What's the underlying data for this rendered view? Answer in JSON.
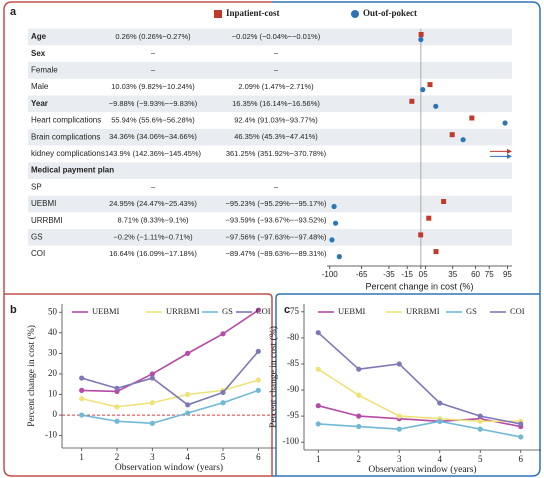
{
  "chart_data": [
    {
      "type": "forest",
      "panel_label": "a",
      "categories": [
        "Age",
        "Sex",
        "Female",
        "Male",
        "Year",
        "Heart complications",
        "Brain complications",
        "kidney complications",
        "Medical payment plan",
        "SP",
        "UEBMI",
        "URRBMI",
        "GS",
        "COI"
      ],
      "bold": [
        true,
        true,
        false,
        false,
        true,
        false,
        false,
        false,
        true,
        false,
        false,
        false,
        false,
        false
      ],
      "series": [
        {
          "name": "Inpatient-cost",
          "color": "#c0392b",
          "marker": "square",
          "values": [
            0.26,
            null,
            null,
            10.03,
            -9.88,
            55.94,
            34.36,
            143.9,
            null,
            null,
            24.95,
            8.71,
            -0.2,
            16.64
          ],
          "value_labels": [
            "0.26% (0.26%−0.27%)",
            "–",
            "–",
            "10.03% (9.82%−10.24%)",
            "−9.88% (−9.93%−−9.83%)",
            "55.94% (55.6%−56.28%)",
            "34.36% (34.06%−34.66%)",
            "143.9% (142.36%−145.45%)",
            null,
            "–",
            "24.95% (24.47%−25.43%)",
            "8.71% (8.33%−9.1%)",
            "−0.2% (−1.11%−0.71%)",
            "16.64% (16.09%−17.18%)"
          ]
        },
        {
          "name": "Out-of-pokect",
          "color": "#2e75b6",
          "marker": "circle",
          "values": [
            -0.02,
            null,
            null,
            2.09,
            16.35,
            92.4,
            46.35,
            361.25,
            null,
            null,
            -95.23,
            -93.59,
            -97.56,
            -89.47
          ],
          "value_labels": [
            "−0.02% (−0.04%−−0.01%)",
            "–",
            "–",
            "2.09% (1.47%−2.71%)",
            "16.35% (16.14%−16.56%)",
            "92.4% (91.03%−93.77%)",
            "46.35% (45.3%−47.41%)",
            "361.25% (351.92%−370.78%)",
            null,
            "–",
            "−95.23% (−95.29%−−95.17%)",
            "−93.59% (−93.67%−−93.52%)",
            "−97.56% (−97.63%−−97.48%)",
            "−89.47% (−89.63%−−89.31%)"
          ]
        }
      ],
      "xlim": [
        -103,
        100
      ],
      "xticks": [
        -100,
        -65,
        -35,
        -15,
        0,
        5,
        35,
        60,
        75,
        95
      ],
      "xlabel": "Percent change in cost (%)",
      "reference_line": {
        "value": 0,
        "color": "#999999"
      }
    },
    {
      "type": "line",
      "panel_label": "b",
      "x": [
        1,
        2,
        3,
        4,
        5,
        6
      ],
      "xlim": [
        0.5,
        6.5
      ],
      "series": [
        {
          "name": "UEBMI",
          "color": "#b54aa8",
          "values": [
            12,
            11.5,
            20,
            30,
            39.5,
            51
          ]
        },
        {
          "name": "URRBMI",
          "color": "#efe27a",
          "values": [
            8,
            4,
            6,
            10,
            12,
            17
          ]
        },
        {
          "name": "GS",
          "color": "#70b9d6",
          "values": [
            0,
            -3,
            -4,
            1,
            6,
            12
          ]
        },
        {
          "name": "COI",
          "color": "#7e77b8",
          "values": [
            18,
            13,
            18,
            5,
            11,
            31
          ]
        }
      ],
      "ylim": [
        -16,
        54
      ],
      "yticks": [
        -10,
        0,
        10,
        20,
        30,
        40,
        50
      ],
      "xlabel": "Observation window (years)",
      "ylabel": "Percent change in cost (%)",
      "reference_line": {
        "value": 0,
        "color": "#e0393e"
      }
    },
    {
      "type": "line",
      "panel_label": "c",
      "x": [
        1,
        2,
        3,
        4,
        5,
        6
      ],
      "xlim": [
        0.5,
        6.5
      ],
      "series": [
        {
          "name": "UEBMI",
          "color": "#b54aa8",
          "values": [
            -93,
            -95,
            -95.5,
            -96,
            -95.5,
            -97
          ]
        },
        {
          "name": "URRBMI",
          "color": "#efe27a",
          "values": [
            -86,
            -91,
            -95,
            -95.5,
            -96,
            -96
          ]
        },
        {
          "name": "GS",
          "color": "#70b9d6",
          "values": [
            -96.5,
            -97,
            -97.5,
            -96,
            -97.5,
            -99
          ]
        },
        {
          "name": "COI",
          "color": "#7e77b8",
          "values": [
            -79,
            -86,
            -85,
            -92.5,
            -95,
            -96.5
          ]
        }
      ],
      "ylim": [
        -101.5,
        -73.5
      ],
      "yticks": [
        -100,
        -95,
        -90,
        -85,
        -80,
        -75
      ],
      "xlabel": "Observation window (years)",
      "ylabel": "Percent change in cost (%)"
    }
  ]
}
